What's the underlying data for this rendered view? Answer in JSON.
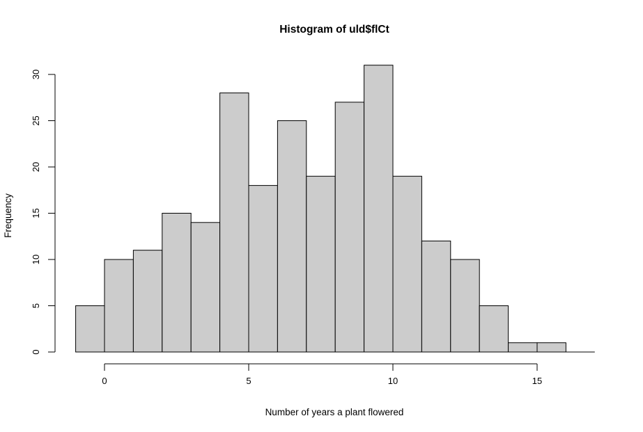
{
  "chart_data": {
    "type": "bar",
    "subtype": "histogram",
    "title": "Histogram of uld$flCt",
    "xlabel": "Number of years a plant flowered",
    "ylabel": "Frequency",
    "breaks": [
      -1,
      0,
      1,
      2,
      3,
      4,
      5,
      6,
      7,
      8,
      9,
      10,
      11,
      12,
      13,
      14,
      15,
      16,
      17
    ],
    "counts": [
      5,
      10,
      11,
      15,
      14,
      28,
      18,
      25,
      19,
      27,
      31,
      19,
      12,
      10,
      5,
      1,
      1,
      0
    ],
    "x_ticks": [
      0,
      5,
      10,
      15
    ],
    "y_ticks": [
      0,
      5,
      10,
      15,
      20,
      25,
      30
    ],
    "xlim": [
      -1,
      17
    ],
    "ylim": [
      0,
      31
    ],
    "bar_fill": "#CCCCCC",
    "bar_stroke": "#000000",
    "axis_color": "#000000",
    "background": "#FFFFFF",
    "grid": false,
    "legend_position": "none"
  }
}
